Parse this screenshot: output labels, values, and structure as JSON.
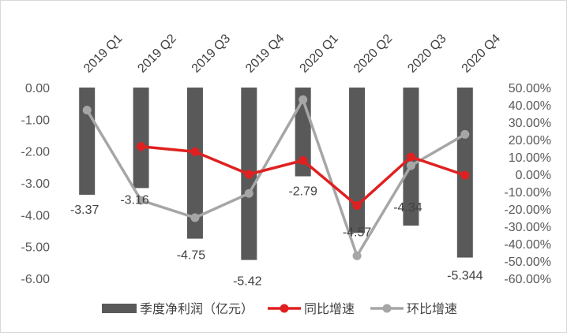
{
  "chart_data": {
    "type": "bar",
    "categories": [
      "2019 Q1",
      "2019 Q2",
      "2019 Q3",
      "2019 Q4",
      "2020  Q1",
      "2020  Q2",
      "2020  Q3",
      "2020  Q4"
    ],
    "series": [
      {
        "name": "季度净利润（亿元）",
        "type": "bar",
        "axis": "left",
        "color": "#595959",
        "values": [
          -3.37,
          -3.16,
          -4.75,
          -5.42,
          -2.79,
          -4.57,
          -4.34,
          -5.344
        ],
        "labels": [
          "-3.37",
          "-3.16",
          "-4.75",
          "-5.42",
          "-2.79",
          "-4.57",
          "-4.34",
          "-5.344"
        ]
      },
      {
        "name": "同比增速",
        "type": "line",
        "axis": "right",
        "color": "#e02020",
        "values": [
          null,
          16.0,
          13.0,
          0.0,
          8.0,
          -18.0,
          10.0,
          -0.5
        ]
      },
      {
        "name": "环比增速",
        "type": "line",
        "axis": "right",
        "color": "#a6a6a6",
        "values": [
          37.0,
          -15.0,
          -25.0,
          -11.0,
          43.0,
          -47.0,
          5.0,
          23.0
        ]
      }
    ],
    "y_left": {
      "range": [
        -6,
        0
      ],
      "ticks": [
        0,
        -1,
        -2,
        -3,
        -4,
        -5,
        -6
      ],
      "tick_labels": [
        "0.00",
        "-1.00",
        "-2.00",
        "-3.00",
        "-4.00",
        "-5.00",
        "-6.00"
      ]
    },
    "y_right": {
      "range": [
        -60,
        50
      ],
      "ticks": [
        50,
        40,
        30,
        20,
        10,
        0,
        -10,
        -20,
        -30,
        -40,
        -50,
        -60
      ],
      "tick_labels": [
        "50.00%",
        "40.00%",
        "30.00%",
        "20.00%",
        "10.00%",
        "0.00%",
        "-10.00%",
        "-20.00%",
        "-30.00%",
        "-40.00%",
        "-50.00%",
        "-60.00%"
      ]
    },
    "grid": false,
    "legend": "bottom",
    "category_labels_position": "top"
  }
}
